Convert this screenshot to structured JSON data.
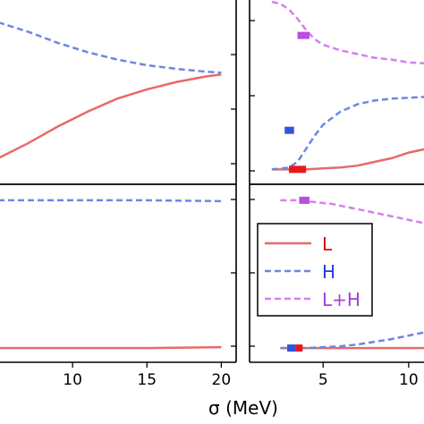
{
  "chart_data": [
    {
      "type": "line",
      "panel": "top-left",
      "xlim": [
        5,
        21
      ],
      "ylim": [
        0,
        1
      ],
      "series": [
        {
          "key": "L",
          "color": "#e8696b",
          "dash": "solid",
          "x": [
            5,
            7,
            9,
            11,
            13,
            15,
            17,
            19,
            20
          ],
          "y": [
            0.14,
            0.22,
            0.31,
            0.39,
            0.46,
            0.51,
            0.55,
            0.58,
            0.59
          ]
        },
        {
          "key": "H",
          "color": "#6f86e0",
          "dash": "dashed",
          "x": [
            5,
            7,
            9,
            11,
            13,
            15,
            17,
            19,
            20
          ],
          "y": [
            0.87,
            0.82,
            0.76,
            0.71,
            0.67,
            0.64,
            0.62,
            0.605,
            0.6
          ]
        }
      ]
    },
    {
      "type": "line",
      "panel": "top-right",
      "xlim": [
        0.7,
        11
      ],
      "ylim": [
        0,
        1
      ],
      "series": [
        {
          "key": "L",
          "color": "#e8696b",
          "dash": "solid",
          "x": [
            2,
            3,
            4,
            5,
            6,
            7,
            8,
            9,
            10,
            11
          ],
          "y": [
            0.08,
            0.08,
            0.08,
            0.085,
            0.09,
            0.1,
            0.12,
            0.14,
            0.17,
            0.19
          ]
        },
        {
          "key": "H",
          "color": "#6f86e0",
          "dash": "dashed",
          "x": [
            2,
            3,
            3.5,
            4,
            4.5,
            5,
            6,
            7,
            8,
            9,
            10,
            11
          ],
          "y": [
            0.08,
            0.09,
            0.12,
            0.19,
            0.26,
            0.32,
            0.39,
            0.43,
            0.45,
            0.46,
            0.465,
            0.47
          ]
        },
        {
          "key": "LH",
          "color": "#d67fec",
          "dash": "dashed",
          "x": [
            2,
            2.5,
            3,
            3.5,
            4,
            4.5,
            5,
            6,
            7,
            8,
            9,
            10,
            11
          ],
          "y": [
            0.98,
            0.97,
            0.94,
            0.89,
            0.83,
            0.78,
            0.75,
            0.72,
            0.7,
            0.68,
            0.67,
            0.655,
            0.65
          ]
        }
      ],
      "markers": [
        {
          "key": "LH",
          "color": "#b94ee0",
          "x": [
            3.5,
            4.2
          ],
          "y": 0.8
        },
        {
          "key": "H",
          "color": "#2f55d8",
          "x": [
            2.75,
            3.3
          ],
          "y": 0.29
        },
        {
          "key": "L",
          "color": "#e8191c",
          "x": [
            3.0,
            4.0
          ],
          "y": 0.08
        }
      ]
    },
    {
      "type": "line",
      "panel": "bottom-left",
      "xlim": [
        5,
        21
      ],
      "ylim": [
        0,
        1
      ],
      "xlabel": "σ (MeV)",
      "xticks": [
        10,
        15,
        20
      ],
      "series": [
        {
          "key": "L",
          "color": "#e8696b",
          "dash": "solid",
          "x": [
            5,
            10,
            15,
            20
          ],
          "y": [
            0.08,
            0.08,
            0.08,
            0.085
          ]
        },
        {
          "key": "H",
          "color": "#6f86e0",
          "dash": "dashed",
          "x": [
            5,
            10,
            15,
            20
          ],
          "y": [
            0.91,
            0.91,
            0.91,
            0.905
          ]
        }
      ]
    },
    {
      "type": "line",
      "panel": "bottom-right",
      "xlim": [
        0.7,
        11
      ],
      "ylim": [
        0,
        1
      ],
      "xticks": [
        5,
        10
      ],
      "series": [
        {
          "key": "L",
          "color": "#e8696b",
          "dash": "solid",
          "x": [
            2.5,
            4,
            6,
            8,
            10,
            11
          ],
          "y": [
            0.08,
            0.08,
            0.08,
            0.08,
            0.08,
            0.08
          ]
        },
        {
          "key": "H",
          "color": "#6f86e0",
          "dash": "dashed",
          "x": [
            2.5,
            4,
            5,
            6,
            7,
            8,
            9,
            10,
            11
          ],
          "y": [
            0.08,
            0.08,
            0.085,
            0.09,
            0.1,
            0.115,
            0.13,
            0.15,
            0.17
          ]
        },
        {
          "key": "LH",
          "color": "#d67fec",
          "dash": "dashed",
          "x": [
            2.5,
            3.5,
            4.5,
            5.5,
            6.5,
            7.5,
            8.5,
            9.5,
            10.5,
            11
          ],
          "y": [
            0.91,
            0.91,
            0.9,
            0.89,
            0.87,
            0.85,
            0.83,
            0.81,
            0.79,
            0.78
          ]
        }
      ],
      "markers": [
        {
          "key": "LH",
          "color": "#b94ee0",
          "x": [
            3.6,
            4.2
          ],
          "y": 0.91
        },
        {
          "key": "H",
          "color": "#2f55d8",
          "x": [
            2.9,
            3.4
          ],
          "y": 0.08
        },
        {
          "key": "L",
          "color": "#e8191c",
          "x": [
            3.4,
            3.8
          ],
          "y": 0.08
        }
      ]
    }
  ],
  "legend": {
    "placement": "bottom-right panel, center",
    "entries": [
      {
        "key": "L",
        "label": "L",
        "color": "#e8696b",
        "label_color": "#cc1111",
        "dash": "solid"
      },
      {
        "key": "H",
        "label": "H",
        "color": "#6f86e0",
        "label_color": "#1f3fd0",
        "dash": "dashed"
      },
      {
        "key": "LH",
        "label": "L+H",
        "color": "#d67fec",
        "label_color": "#a43fd6",
        "dash": "dashed"
      }
    ]
  }
}
